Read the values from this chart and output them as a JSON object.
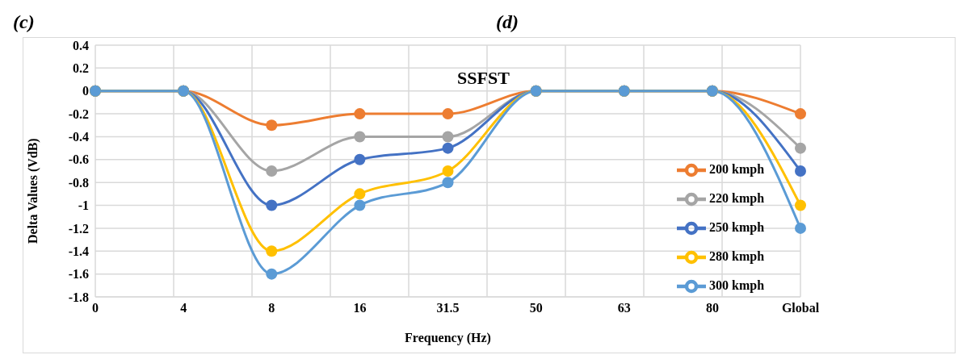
{
  "chart_data": {
    "type": "line",
    "title": "SSFST",
    "xlabel": "Frequency (Hz)",
    "ylabel": "Delta Values (VdB)",
    "annotations": [
      "(c)",
      "(d)"
    ],
    "categories": [
      "0",
      "4",
      "8",
      "16",
      "31.5",
      "50",
      "63",
      "80",
      "Global"
    ],
    "series": [
      {
        "name": "200 kmph",
        "color": "#ed7d31",
        "values": [
          0,
          0,
          -0.3,
          -0.2,
          -0.2,
          0,
          0,
          0,
          -0.2
        ]
      },
      {
        "name": "220 kmph",
        "color": "#a5a5a5",
        "values": [
          0,
          0,
          -0.7,
          -0.4,
          -0.4,
          0,
          0,
          0,
          -0.5
        ]
      },
      {
        "name": "250 kmph",
        "color": "#4472c4",
        "values": [
          0,
          0,
          -1,
          -0.6,
          -0.5,
          0,
          0,
          0,
          -0.7
        ]
      },
      {
        "name": "280 kmph",
        "color": "#ffc000",
        "values": [
          0,
          0,
          -1.4,
          -0.9,
          -0.7,
          0,
          0,
          0,
          -1
        ]
      },
      {
        "name": "300 kmph",
        "color": "#5b9bd5",
        "values": [
          0,
          0,
          -1.6,
          -1,
          -0.8,
          0,
          0,
          0,
          -1.2
        ]
      }
    ],
    "ylim": [
      -1.8,
      0.4
    ],
    "yticks": [
      -1.8,
      -1.6,
      -1.4,
      -1.2,
      -1,
      -0.8,
      -0.6,
      -0.4,
      -0.2,
      0,
      0.2,
      0.4
    ],
    "grid": true,
    "legend": "right",
    "marker": "circle",
    "line_style": "solid"
  }
}
